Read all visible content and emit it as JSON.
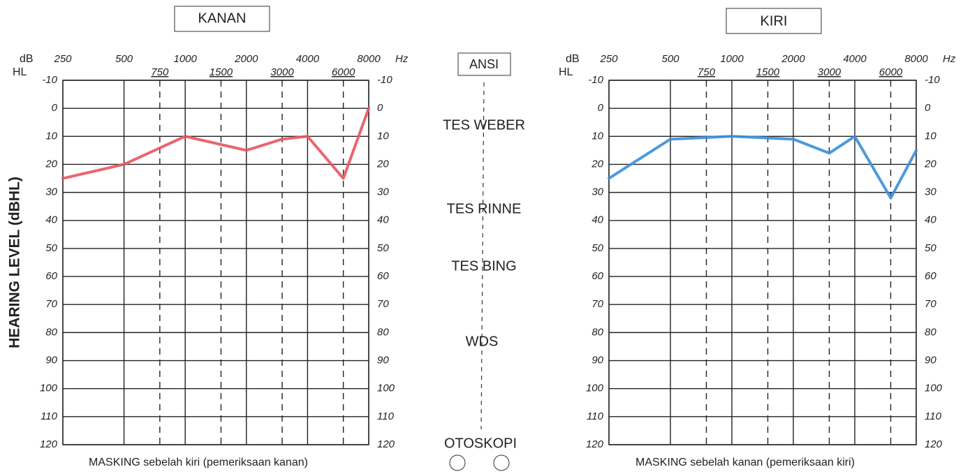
{
  "chart_data": [
    {
      "type": "line",
      "title": "KANAN",
      "y_label": "HEARING LEVEL (dBHL)",
      "y_unit": "dB",
      "y_unit2": "HL",
      "x_unit": "Hz",
      "footnote": "MASKING sebelah kiri (pemeriksaan kanan)",
      "x": [
        250,
        500,
        1000,
        2000,
        3000,
        4000,
        6000,
        8000
      ],
      "series": [
        {
          "color": "#e8545f",
          "values": [
            25,
            20,
            10,
            15,
            11,
            10,
            25,
            0
          ]
        }
      ],
      "xlim": [
        250,
        8000
      ],
      "log_x": true,
      "xticks": [
        250,
        500,
        1000,
        2000,
        4000,
        8000
      ],
      "xticks_minor": [
        750,
        1500,
        3000,
        6000
      ],
      "ylim": [
        -10,
        120
      ],
      "y_inverted": true,
      "yticks": [
        -10,
        0,
        10,
        20,
        30,
        40,
        50,
        60,
        70,
        80,
        90,
        100,
        110,
        120
      ],
      "grid": true
    },
    {
      "type": "line",
      "title": "KIRI",
      "y_unit": "dB",
      "y_unit2": "HL",
      "x_unit": "Hz",
      "footnote": "MASKING sebelah kanan (pemeriksaan kiri)",
      "x": [
        250,
        500,
        1000,
        2000,
        3000,
        4000,
        6000,
        8000
      ],
      "series": [
        {
          "color": "#3a8fdc",
          "values": [
            25,
            11,
            10,
            11,
            16,
            10,
            32,
            15
          ]
        }
      ],
      "xlim": [
        250,
        8000
      ],
      "log_x": true,
      "xticks": [
        250,
        500,
        1000,
        2000,
        4000,
        8000
      ],
      "xticks_minor": [
        750,
        1500,
        3000,
        6000
      ],
      "ylim": [
        -10,
        120
      ],
      "y_inverted": true,
      "yticks": [
        -10,
        0,
        10,
        20,
        30,
        40,
        50,
        60,
        70,
        80,
        90,
        100,
        110,
        120
      ],
      "grid": true
    }
  ],
  "middle": {
    "standard": "ANSI",
    "tests": [
      "TES WEBER",
      "TES RINNE",
      "TES BING",
      "WDS",
      "OTOSKOPI"
    ]
  }
}
